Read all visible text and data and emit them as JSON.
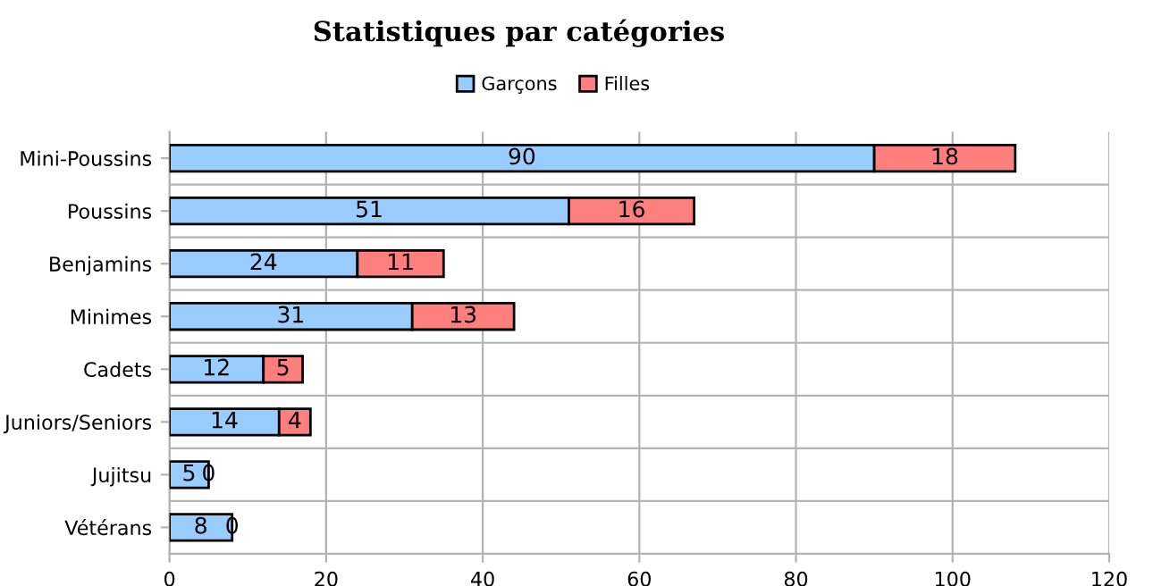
{
  "chart_data": {
    "type": "bar",
    "title": "Statistiques par catégories",
    "orientation": "horizontal",
    "stacked": true,
    "categories": [
      "Mini-Poussins",
      "Poussins",
      "Benjamins",
      "Minimes",
      "Cadets",
      "Juniors/Seniors",
      "Jujitsu",
      "Vétérans"
    ],
    "series": [
      {
        "name": "Garçons",
        "color": "#99ccff",
        "values": [
          90,
          51,
          24,
          31,
          12,
          14,
          5,
          8
        ]
      },
      {
        "name": "Filles",
        "color": "#ff7f7f",
        "values": [
          18,
          16,
          11,
          13,
          5,
          4,
          0,
          0
        ]
      }
    ],
    "xlim": [
      0,
      120
    ],
    "xticks": [
      0,
      20,
      40,
      60,
      80,
      100,
      120
    ],
    "grid": true,
    "legend": "top",
    "data_labels": true
  }
}
